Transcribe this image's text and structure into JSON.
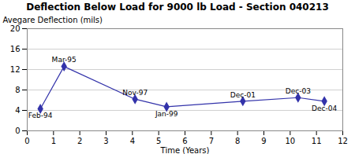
{
  "chart_data": {
    "type": "line",
    "title": "Deflection Below Load for 9000 lb Load - Section 040213",
    "xlabel": "Time (Years)",
    "ylabel": "Avegare Deflection (mils)",
    "x": [
      0.5,
      1.4,
      4.1,
      5.3,
      8.2,
      10.3,
      11.3
    ],
    "values": [
      4.3,
      12.6,
      6.2,
      4.7,
      5.8,
      6.5,
      5.8
    ],
    "annotations": [
      "Feb-94",
      "Mar-95",
      "Nov-97",
      "Jan-99",
      "Dec-01",
      "Dec-03",
      "Dec-04"
    ],
    "xlim": [
      0,
      12
    ],
    "xticks": [
      0,
      1,
      2,
      3,
      4,
      5,
      6,
      7,
      8,
      9,
      10,
      11,
      12
    ],
    "ylim": [
      0,
      20
    ],
    "yticks": [
      0,
      4,
      8,
      12,
      16,
      20
    ],
    "color": "#3333aa",
    "marker": "diamond",
    "grid": true
  }
}
